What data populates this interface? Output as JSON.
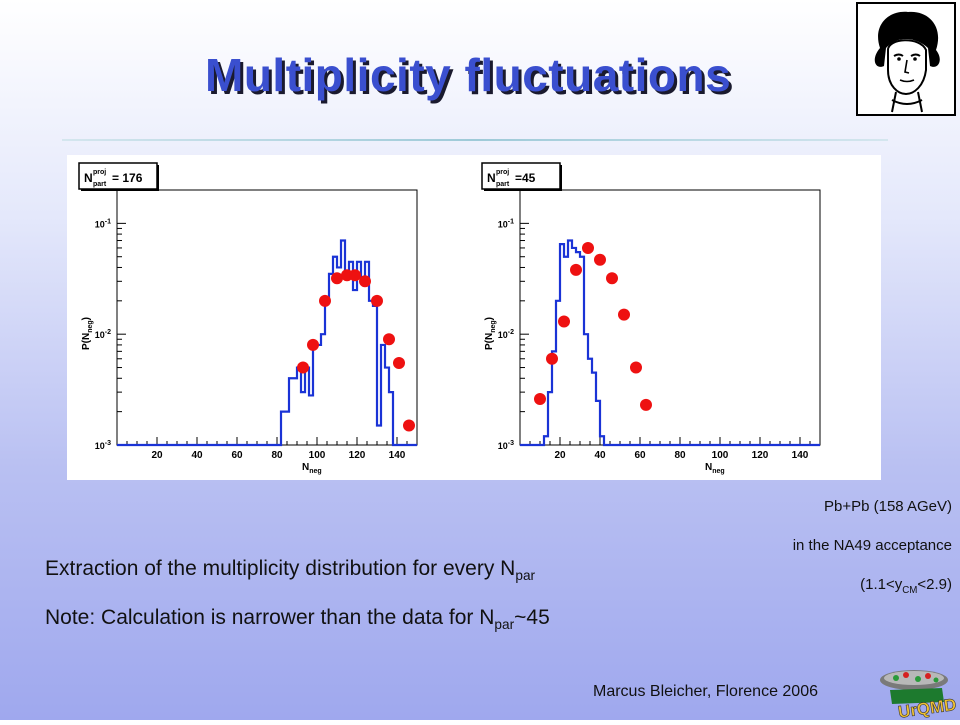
{
  "slide": {
    "title": "Multiplicity fluctuations",
    "notes": {
      "line1": "Pb+Pb (158 AGeV)",
      "line2": "in the NA49 acceptance",
      "line3_prefix": "(1.1<y",
      "line3_sub": "CM",
      "line3_suffix": "<2.9)"
    },
    "body": {
      "line1_text": "Extraction of the multiplicity distribution for every N",
      "line1_sub": "par",
      "line2_text": "Note: Calculation is narrower than the data for N",
      "line2_sub": "par",
      "line2_suffix": "~45"
    },
    "footer": "Marcus Bleicher, Florence 2006",
    "logo_text": "UrQMD",
    "colors": {
      "title": "#3a4fcf",
      "histogram": "#1a33d6",
      "data_points": "#ee1111"
    }
  },
  "chart_data": [
    {
      "type": "line",
      "legend_box": {
        "label_main": "N",
        "label_sup": "proj",
        "label_sub": "part",
        "label_value": " = 176"
      },
      "xlabel": "N",
      "xlabel_sub": "neg",
      "ylabel": "P(N",
      "ylabel_sub": "neg",
      "ylabel_close": ")",
      "yscale": "log",
      "xlim": [
        0,
        150
      ],
      "ylim": [
        0.001,
        0.2
      ],
      "xticks": [
        20,
        40,
        60,
        80,
        100,
        120,
        140
      ],
      "yticks": [
        {
          "value": 0.001,
          "base": "10",
          "exp": "-3"
        },
        {
          "value": 0.01,
          "base": "10",
          "exp": "-2"
        },
        {
          "value": 0.1,
          "base": "10",
          "exp": "-1"
        }
      ],
      "series": [
        {
          "style": "step",
          "x": [
            0,
            82,
            84,
            86,
            88,
            90,
            92,
            94,
            96,
            98,
            100,
            102,
            104,
            106,
            108,
            110,
            112,
            114,
            116,
            118,
            120,
            122,
            124,
            126,
            128,
            130,
            132,
            134,
            136,
            138,
            140,
            142,
            144,
            150
          ],
          "values": [
            0.001,
            0.002,
            0.002,
            0.004,
            0.004,
            0.005,
            0.003,
            0.005,
            0.0028,
            0.008,
            0.008,
            0.01,
            0.02,
            0.035,
            0.05,
            0.04,
            0.07,
            0.035,
            0.045,
            0.025,
            0.045,
            0.03,
            0.045,
            0.02,
            0.018,
            0.0015,
            0.008,
            0.005,
            0.003,
            0.001,
            0.001,
            0.001,
            0.001,
            0.001
          ]
        },
        {
          "style": "points",
          "x": [
            93,
            98,
            104,
            110,
            115,
            119,
            124,
            130,
            136,
            141,
            146
          ],
          "values": [
            0.005,
            0.008,
            0.02,
            0.032,
            0.034,
            0.034,
            0.03,
            0.02,
            0.009,
            0.0055,
            0.0015
          ]
        }
      ]
    },
    {
      "type": "line",
      "legend_box": {
        "label_main": "N",
        "label_sup": "proj",
        "label_sub": "part",
        "label_value": "=45"
      },
      "xlabel": "N",
      "xlabel_sub": "neg",
      "ylabel": "P(N",
      "ylabel_sub": "neg",
      "ylabel_close": ")",
      "yscale": "log",
      "xlim": [
        0,
        150
      ],
      "ylim": [
        0.001,
        0.2
      ],
      "xticks": [
        20,
        40,
        60,
        80,
        100,
        120,
        140
      ],
      "yticks": [
        {
          "value": 0.001,
          "base": "10",
          "exp": "-3"
        },
        {
          "value": 0.01,
          "base": "10",
          "exp": "-2"
        },
        {
          "value": 0.1,
          "base": "10",
          "exp": "-1"
        }
      ],
      "series": [
        {
          "style": "step",
          "x": [
            0,
            12,
            14,
            16,
            18,
            20,
            22,
            24,
            26,
            28,
            30,
            32,
            34,
            36,
            38,
            40,
            42,
            150
          ],
          "values": [
            0.001,
            0.0012,
            0.003,
            0.007,
            0.02,
            0.065,
            0.05,
            0.07,
            0.06,
            0.055,
            0.05,
            0.01,
            0.006,
            0.0045,
            0.0025,
            0.0012,
            0.001,
            0.001
          ]
        },
        {
          "style": "points",
          "x": [
            10,
            16,
            22,
            28,
            34,
            40,
            46,
            52,
            58,
            63
          ],
          "values": [
            0.0026,
            0.006,
            0.013,
            0.038,
            0.06,
            0.047,
            0.032,
            0.015,
            0.005,
            0.0023
          ]
        }
      ]
    }
  ]
}
